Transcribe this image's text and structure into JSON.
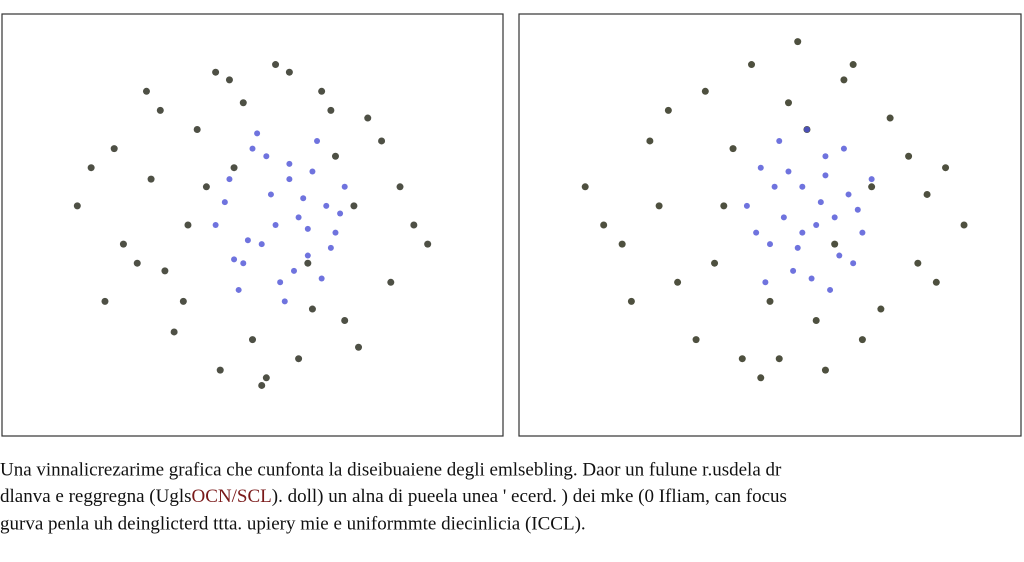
{
  "chart_data": [
    {
      "type": "scatter",
      "xlim": [
        0,
        100
      ],
      "ylim": [
        0,
        100
      ],
      "series": [
        {
          "color": "#3b3d31",
          "x": [
            12,
            20,
            25,
            30,
            35,
            40,
            45,
            50,
            55,
            60,
            65,
            70,
            75,
            80,
            85,
            22,
            28,
            33,
            38,
            43,
            48,
            53,
            58,
            63,
            68,
            73,
            78,
            82,
            18,
            27,
            36,
            46,
            62,
            72,
            88,
            15,
            31,
            42,
            52,
            67
          ],
          "values": [
            55,
            70,
            40,
            80,
            30,
            60,
            88,
            20,
            92,
            15,
            85,
            25,
            78,
            35,
            50,
            45,
            62,
            22,
            75,
            12,
            82,
            10,
            90,
            28,
            68,
            18,
            72,
            60,
            30,
            85,
            50,
            65,
            40,
            55,
            45,
            65,
            38,
            90,
            8,
            80
          ]
        },
        {
          "color": "#4b50d6",
          "x": [
            42,
            45,
            48,
            50,
            52,
            54,
            56,
            58,
            60,
            62,
            64,
            66,
            68,
            70,
            47,
            51,
            55,
            59,
            63,
            67,
            44,
            53,
            57,
            61,
            65,
            49,
            58,
            62,
            46,
            69
          ],
          "values": [
            50,
            62,
            40,
            70,
            45,
            58,
            35,
            66,
            52,
            42,
            72,
            55,
            48,
            60,
            33,
            74,
            50,
            38,
            64,
            44,
            56,
            68,
            30,
            57,
            36,
            46,
            62,
            49,
            41,
            53
          ]
        }
      ]
    },
    {
      "type": "scatter",
      "xlim": [
        0,
        100
      ],
      "ylim": [
        0,
        100
      ],
      "series": [
        {
          "color": "#3b3d2a",
          "x": [
            10,
            18,
            24,
            30,
            36,
            40,
            46,
            52,
            56,
            60,
            66,
            70,
            76,
            82,
            88,
            92,
            20,
            28,
            34,
            42,
            48,
            54,
            62,
            68,
            74,
            80,
            86,
            14,
            38,
            50,
            58,
            72,
            84,
            26,
            44,
            64
          ],
          "values": [
            60,
            45,
            72,
            35,
            85,
            55,
            92,
            15,
            98,
            25,
            88,
            20,
            78,
            40,
            65,
            50,
            30,
            80,
            20,
            70,
            10,
            82,
            12,
            92,
            28,
            68,
            35,
            50,
            40,
            30,
            75,
            60,
            58,
            55,
            15,
            45
          ]
        },
        {
          "color": "#4b50d6",
          "x": [
            45,
            48,
            50,
            52,
            55,
            57,
            60,
            62,
            65,
            67,
            70,
            72,
            49,
            53,
            58,
            63,
            68,
            54,
            61,
            66,
            47,
            56,
            64,
            59,
            51,
            69,
            62,
            57
          ],
          "values": [
            55,
            65,
            45,
            72,
            38,
            60,
            50,
            68,
            42,
            58,
            48,
            62,
            35,
            52,
            75,
            33,
            40,
            64,
            56,
            70,
            48,
            44,
            52,
            36,
            60,
            54,
            63,
            48
          ]
        }
      ]
    }
  ],
  "caption": {
    "line1": "Una vinnalicrezarime grafica che cunfonta la diseibuaiene degli emlsebling. Daor un fulune r.usdela dr",
    "line2a": "dlanva e reggregna (Ugls",
    "line2b": "OCN/SCL",
    "line2c": "). doll) un alna di pueela unea ' ecerd. ) dei mke (0 Ifliam, can focus",
    "line3": "gurva penla uh deinglicterd ttta. upiery mie e uniformmte diecinlicia (ICCL)."
  }
}
